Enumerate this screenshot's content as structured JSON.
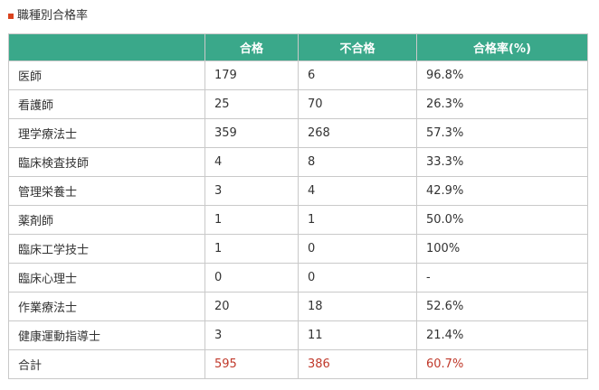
{
  "section": {
    "title": "職種別合格率",
    "marker_color": "#d9431e"
  },
  "table": {
    "header_color": "#3aa88a",
    "total_color": "#c0392b",
    "columns": [
      "",
      "合格",
      "不合格",
      "合格率(%)"
    ],
    "rows": [
      {
        "name": "医師",
        "pass": "179",
        "fail": "6",
        "rate": "96.8%"
      },
      {
        "name": "看護師",
        "pass": "25",
        "fail": "70",
        "rate": "26.3%"
      },
      {
        "name": "理学療法士",
        "pass": "359",
        "fail": "268",
        "rate": "57.3%"
      },
      {
        "name": "臨床検査技師",
        "pass": "4",
        "fail": "8",
        "rate": "33.3%"
      },
      {
        "name": "管理栄養士",
        "pass": "3",
        "fail": "4",
        "rate": "42.9%"
      },
      {
        "name": "薬剤師",
        "pass": "1",
        "fail": "1",
        "rate": " 50.0%"
      },
      {
        "name": "臨床工学技士",
        "pass": "1",
        "fail": "0",
        "rate": "100%"
      },
      {
        "name": "臨床心理士",
        "pass": "0",
        "fail": "0",
        "rate": " -"
      },
      {
        "name": "作業療法士",
        "pass": "20",
        "fail": "18",
        "rate": "52.6%"
      },
      {
        "name": "健康運動指導士",
        "pass": "3",
        "fail": "11",
        "rate": "21.4%"
      }
    ],
    "total": {
      "name": "合計",
      "pass": "595",
      "fail": "386",
      "rate": "60.7%"
    }
  }
}
